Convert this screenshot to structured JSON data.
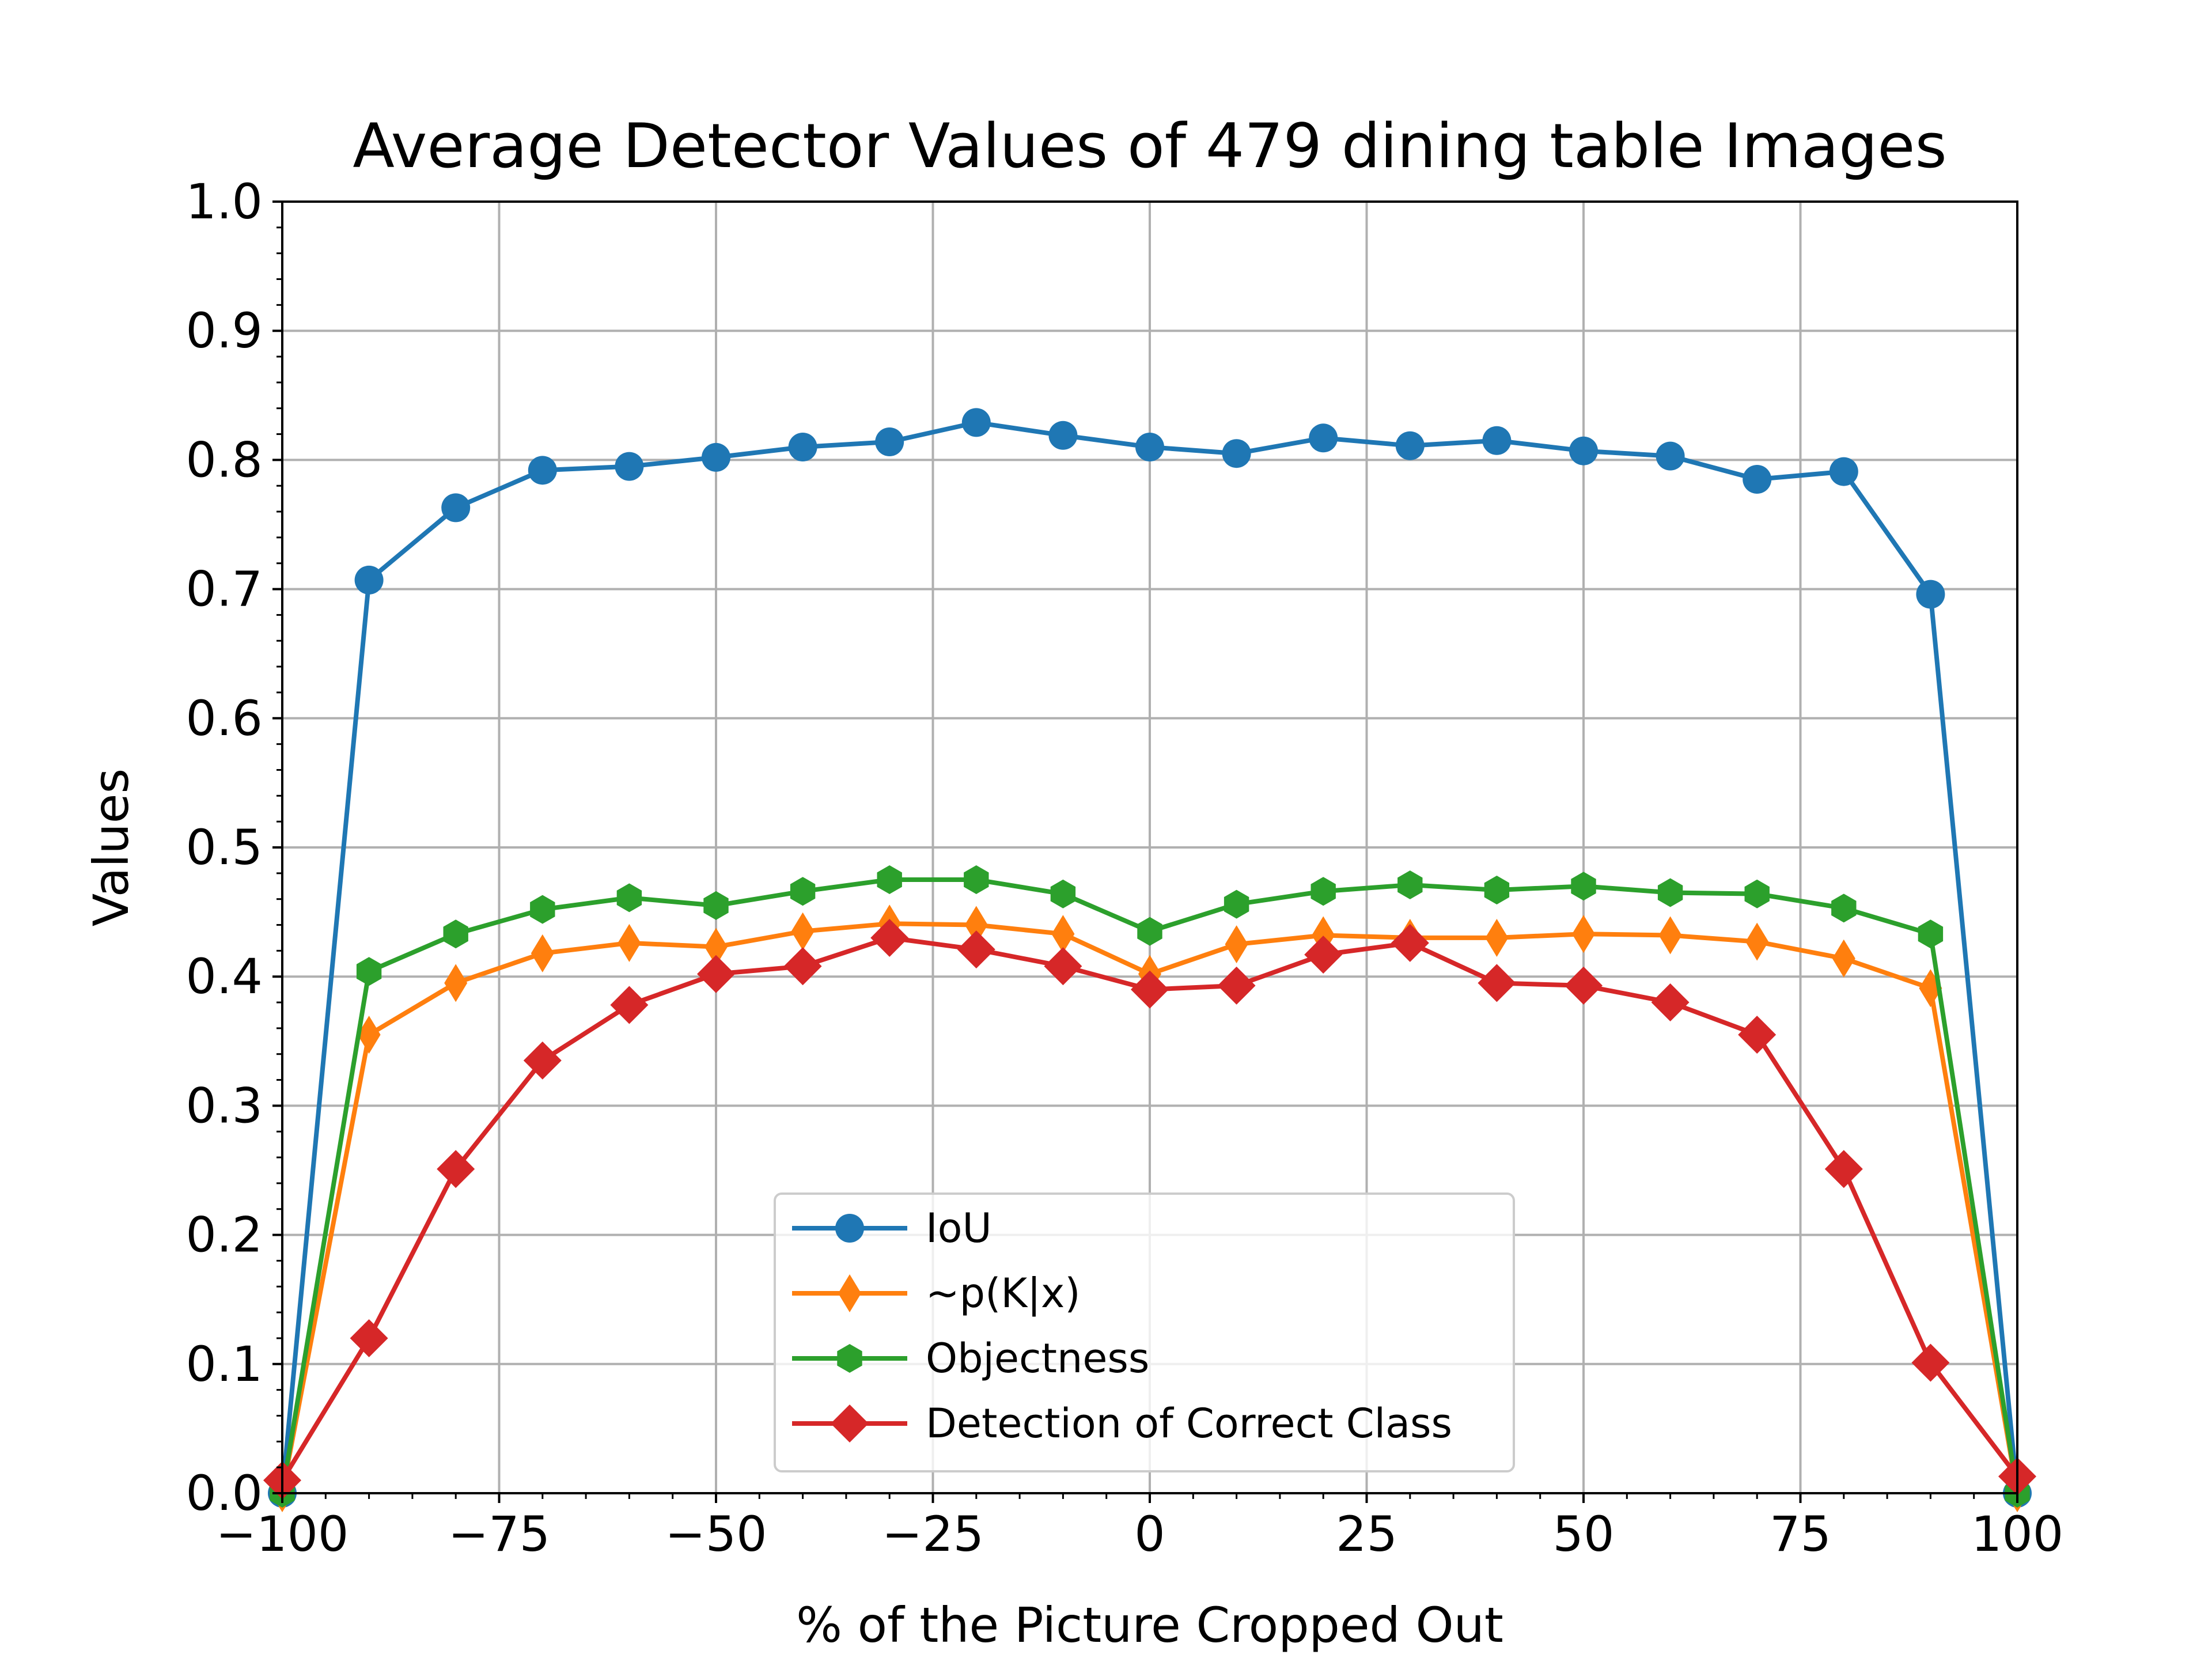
{
  "chart_data": {
    "type": "line",
    "title": "Average Detector Values of 479 dining table Images",
    "xlabel": "% of the Picture Cropped Out",
    "ylabel": "Values",
    "xlim": [
      -100,
      100
    ],
    "ylim": [
      0,
      1.0
    ],
    "grid": true,
    "legend_position": "bottom-center",
    "xticks": [
      -100,
      -75,
      -50,
      -25,
      0,
      25,
      50,
      75,
      100
    ],
    "xtick_labels": [
      "−100",
      "−75",
      "−50",
      "−25",
      "0",
      "25",
      "50",
      "75",
      "100"
    ],
    "yticks": [
      0.0,
      0.1,
      0.2,
      0.3,
      0.4,
      0.5,
      0.6,
      0.7,
      0.8,
      0.9,
      1.0
    ],
    "ytick_labels": [
      "0.0",
      "0.1",
      "0.2",
      "0.3",
      "0.4",
      "0.5",
      "0.6",
      "0.7",
      "0.8",
      "0.9",
      "1.0"
    ],
    "x": [
      -100,
      -90,
      -80,
      -70,
      -60,
      -50,
      -40,
      -30,
      -20,
      -10,
      0,
      10,
      20,
      30,
      40,
      50,
      60,
      70,
      80,
      90,
      100
    ],
    "series": [
      {
        "name": "IoU",
        "color": "#1f77b4",
        "marker": "circle",
        "values": [
          0.0,
          0.707,
          0.763,
          0.792,
          0.795,
          0.802,
          0.81,
          0.814,
          0.829,
          0.819,
          0.81,
          0.805,
          0.817,
          0.811,
          0.815,
          0.807,
          0.803,
          0.785,
          0.791,
          0.696,
          0.0
        ]
      },
      {
        "name": "~p(K|x)",
        "color": "#ff7f0e",
        "marker": "thin_diamond",
        "values": [
          0.0,
          0.355,
          0.395,
          0.418,
          0.426,
          0.423,
          0.435,
          0.441,
          0.44,
          0.433,
          0.402,
          0.425,
          0.432,
          0.43,
          0.43,
          0.433,
          0.432,
          0.427,
          0.414,
          0.391,
          0.0
        ]
      },
      {
        "name": "Objectness",
        "color": "#2ca02c",
        "marker": "hexagon",
        "values": [
          0.0,
          0.404,
          0.433,
          0.452,
          0.461,
          0.455,
          0.466,
          0.475,
          0.475,
          0.464,
          0.435,
          0.456,
          0.466,
          0.471,
          0.467,
          0.47,
          0.465,
          0.464,
          0.453,
          0.433,
          0.0
        ]
      },
      {
        "name": "Detection of Correct Class",
        "color": "#d62728",
        "marker": "diamond",
        "values": [
          0.01,
          0.12,
          0.251,
          0.335,
          0.378,
          0.402,
          0.408,
          0.43,
          0.421,
          0.408,
          0.39,
          0.393,
          0.417,
          0.426,
          0.395,
          0.393,
          0.38,
          0.355,
          0.251,
          0.101,
          0.013
        ]
      }
    ]
  }
}
